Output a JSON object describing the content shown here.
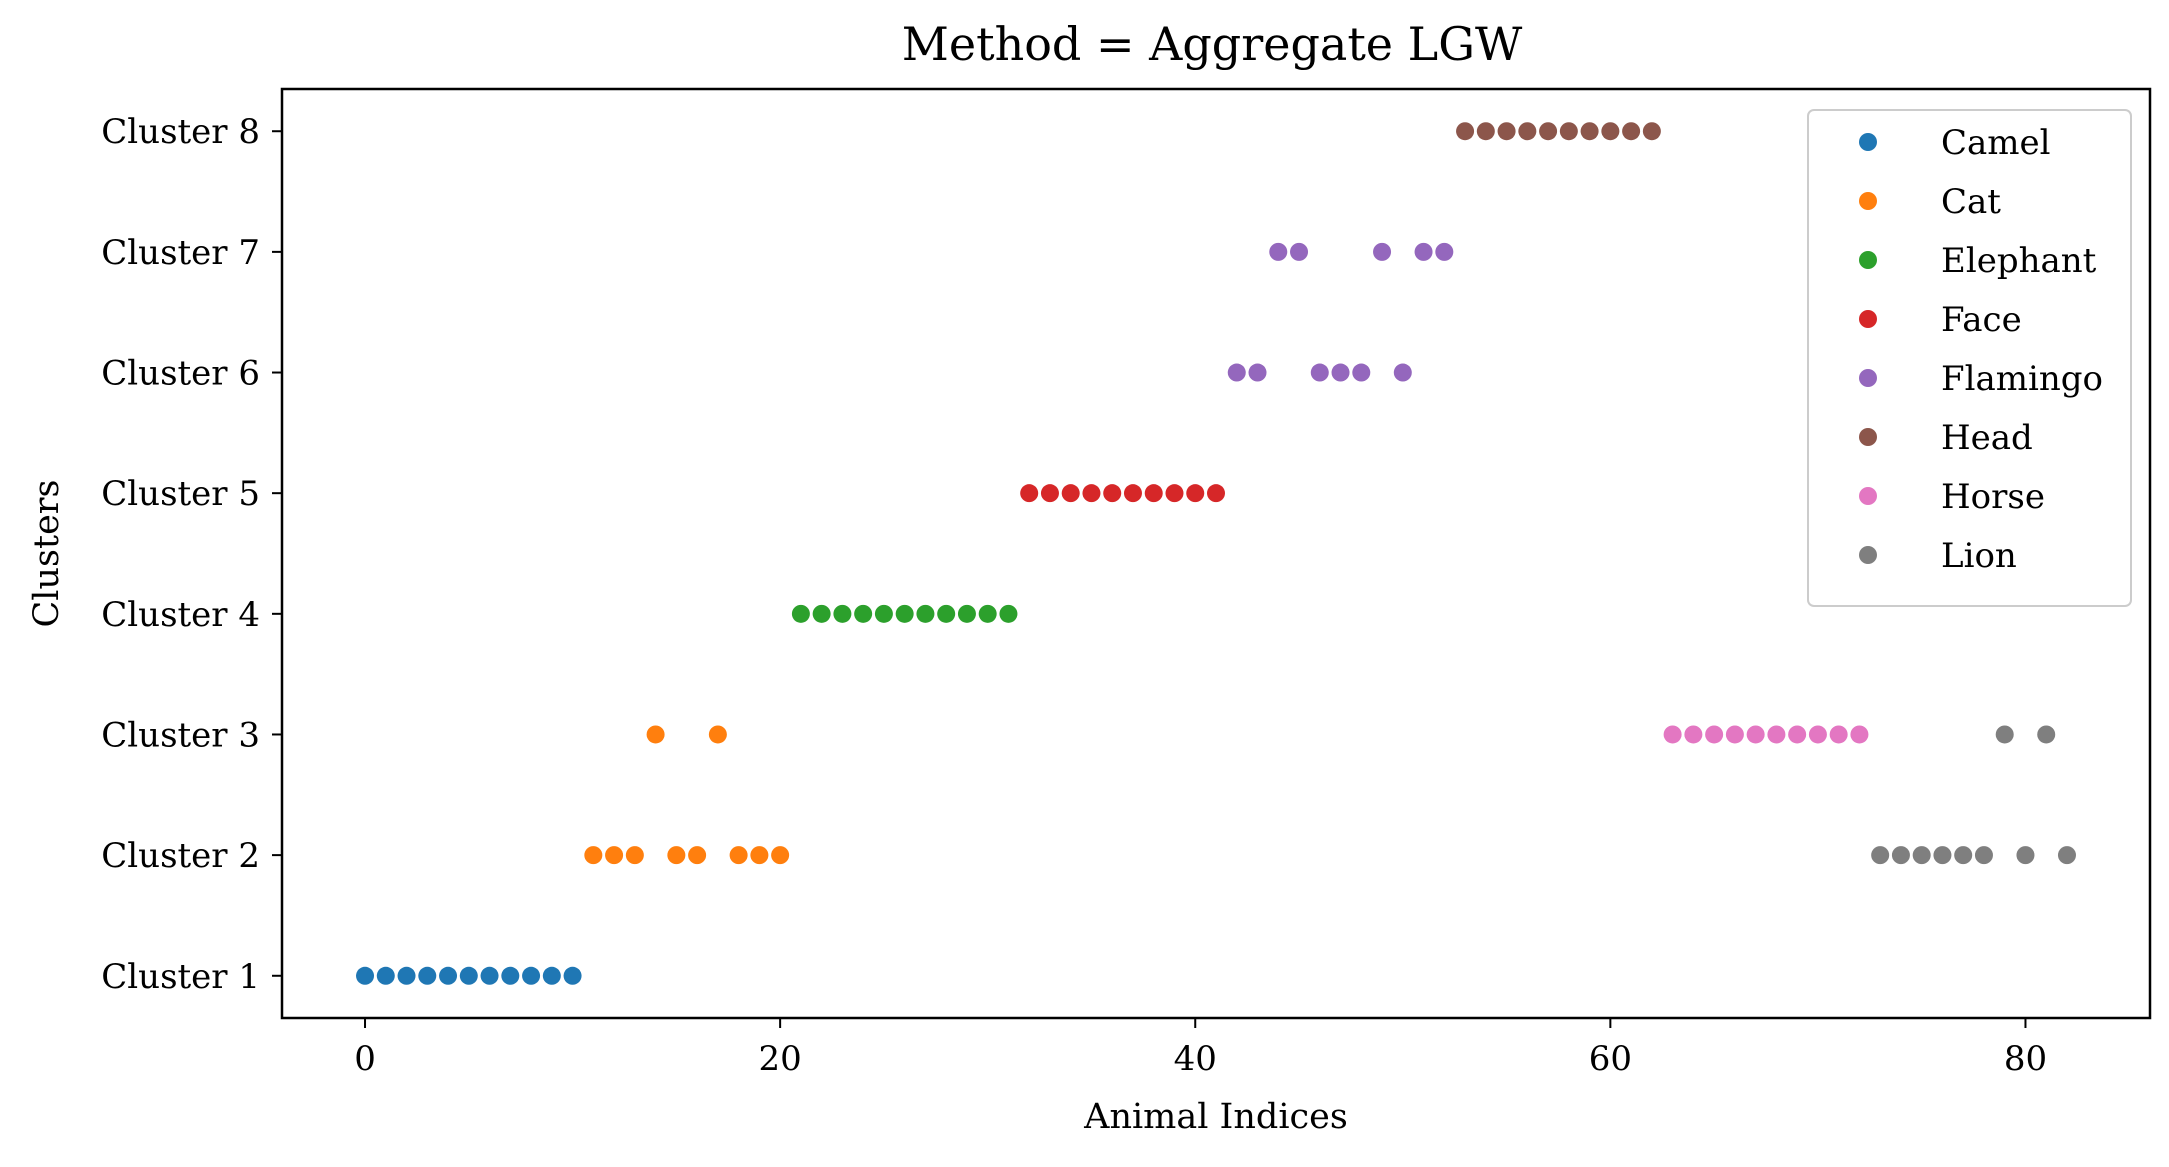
{
  "chart_data": {
    "type": "scatter",
    "title": "Method = Aggregate LGW",
    "xlabel": "Animal Indices",
    "ylabel": "Clusters",
    "xlim": [
      -4,
      86
    ],
    "ylim": [
      0.65,
      8.35
    ],
    "xticks": [
      0,
      20,
      40,
      60,
      80
    ],
    "xtick_labels": [
      "0",
      "20",
      "40",
      "60",
      "80"
    ],
    "yticks": [
      1,
      2,
      3,
      4,
      5,
      6,
      7,
      8
    ],
    "ytick_labels": [
      "Cluster 1",
      "Cluster 2",
      "Cluster 3",
      "Cluster 4",
      "Cluster 5",
      "Cluster 6",
      "Cluster 7",
      "Cluster 8"
    ],
    "grid": false,
    "legend_position": "top-right",
    "series": [
      {
        "name": "Camel",
        "color": "#1f77b4",
        "points": [
          [
            0,
            1
          ],
          [
            1,
            1
          ],
          [
            2,
            1
          ],
          [
            3,
            1
          ],
          [
            4,
            1
          ],
          [
            5,
            1
          ],
          [
            6,
            1
          ],
          [
            7,
            1
          ],
          [
            8,
            1
          ],
          [
            9,
            1
          ],
          [
            10,
            1
          ]
        ]
      },
      {
        "name": "Cat",
        "color": "#ff7f0e",
        "points": [
          [
            11,
            2
          ],
          [
            12,
            2
          ],
          [
            13,
            2
          ],
          [
            14,
            3
          ],
          [
            15,
            2
          ],
          [
            16,
            2
          ],
          [
            17,
            3
          ],
          [
            18,
            2
          ],
          [
            19,
            2
          ],
          [
            20,
            2
          ]
        ]
      },
      {
        "name": "Elephant",
        "color": "#2ca02c",
        "points": [
          [
            21,
            4
          ],
          [
            22,
            4
          ],
          [
            23,
            4
          ],
          [
            24,
            4
          ],
          [
            25,
            4
          ],
          [
            26,
            4
          ],
          [
            27,
            4
          ],
          [
            28,
            4
          ],
          [
            29,
            4
          ],
          [
            30,
            4
          ],
          [
            31,
            4
          ]
        ]
      },
      {
        "name": "Face",
        "color": "#d62728",
        "points": [
          [
            32,
            5
          ],
          [
            33,
            5
          ],
          [
            34,
            5
          ],
          [
            35,
            5
          ],
          [
            36,
            5
          ],
          [
            37,
            5
          ],
          [
            38,
            5
          ],
          [
            39,
            5
          ],
          [
            40,
            5
          ],
          [
            41,
            5
          ]
        ]
      },
      {
        "name": "Flamingo",
        "color": "#9467bd",
        "points": [
          [
            42,
            6
          ],
          [
            43,
            6
          ],
          [
            44,
            7
          ],
          [
            45,
            7
          ],
          [
            46,
            6
          ],
          [
            47,
            6
          ],
          [
            48,
            6
          ],
          [
            49,
            7
          ],
          [
            50,
            6
          ],
          [
            51,
            7
          ],
          [
            52,
            7
          ]
        ]
      },
      {
        "name": "Head",
        "color": "#8c564b",
        "points": [
          [
            53,
            8
          ],
          [
            54,
            8
          ],
          [
            55,
            8
          ],
          [
            56,
            8
          ],
          [
            57,
            8
          ],
          [
            58,
            8
          ],
          [
            59,
            8
          ],
          [
            60,
            8
          ],
          [
            61,
            8
          ],
          [
            62,
            8
          ]
        ]
      },
      {
        "name": "Horse",
        "color": "#e377c2",
        "points": [
          [
            63,
            3
          ],
          [
            64,
            3
          ],
          [
            65,
            3
          ],
          [
            66,
            3
          ],
          [
            67,
            3
          ],
          [
            68,
            3
          ],
          [
            69,
            3
          ],
          [
            70,
            3
          ],
          [
            71,
            3
          ],
          [
            72,
            3
          ]
        ]
      },
      {
        "name": "Lion",
        "color": "#7f7f7f",
        "points": [
          [
            73,
            2
          ],
          [
            74,
            2
          ],
          [
            75,
            2
          ],
          [
            76,
            2
          ],
          [
            77,
            2
          ],
          [
            78,
            2
          ],
          [
            79,
            3
          ],
          [
            80,
            2
          ],
          [
            81,
            3
          ],
          [
            82,
            2
          ]
        ]
      }
    ]
  }
}
